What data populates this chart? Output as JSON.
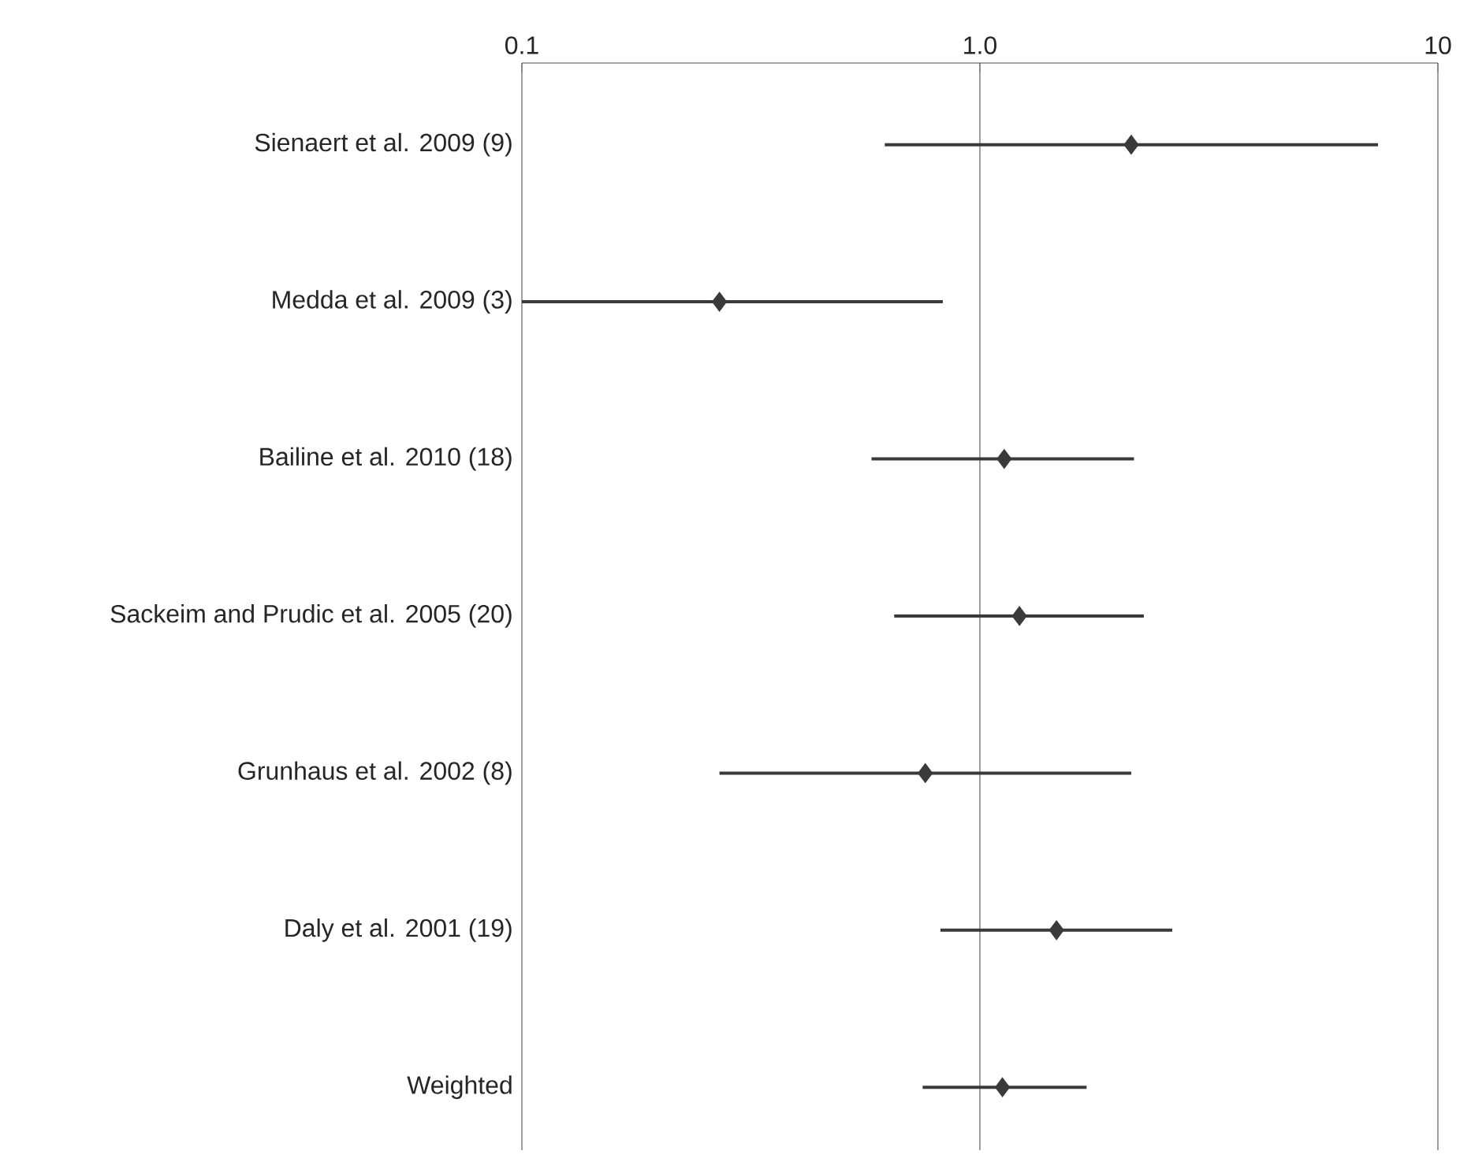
{
  "chart_data": {
    "type": "scatter",
    "orientation": "horizontal",
    "log": "x",
    "grid": "x",
    "marker": "diamond",
    "color": "#3a3a3a",
    "categories": [
      "Sienaert et al. 2009 (9)",
      "Medda et al. 2009 (3)",
      "Bailine et al. 2010 (18)",
      "Sackeim and Prudic et al. 2005 (20)",
      "Grunhaus et al. 2002 (8)",
      "Daly et al. 2001 (19)",
      "Weighted"
    ],
    "values": [
      2.14,
      0.27,
      1.13,
      1.22,
      0.76,
      1.47,
      1.12
    ],
    "errors": [
      [
        0.62,
        7.4
      ],
      [
        0.1,
        0.83
      ],
      [
        0.58,
        2.17
      ],
      [
        0.65,
        2.28
      ],
      [
        0.27,
        2.14
      ],
      [
        0.82,
        2.63
      ],
      [
        0.75,
        1.71
      ]
    ],
    "xlim": [
      0.1,
      10
    ],
    "xticks": [
      0.1,
      {
        "value": 1,
        "label": "1.0"
      },
      10
    ]
  }
}
